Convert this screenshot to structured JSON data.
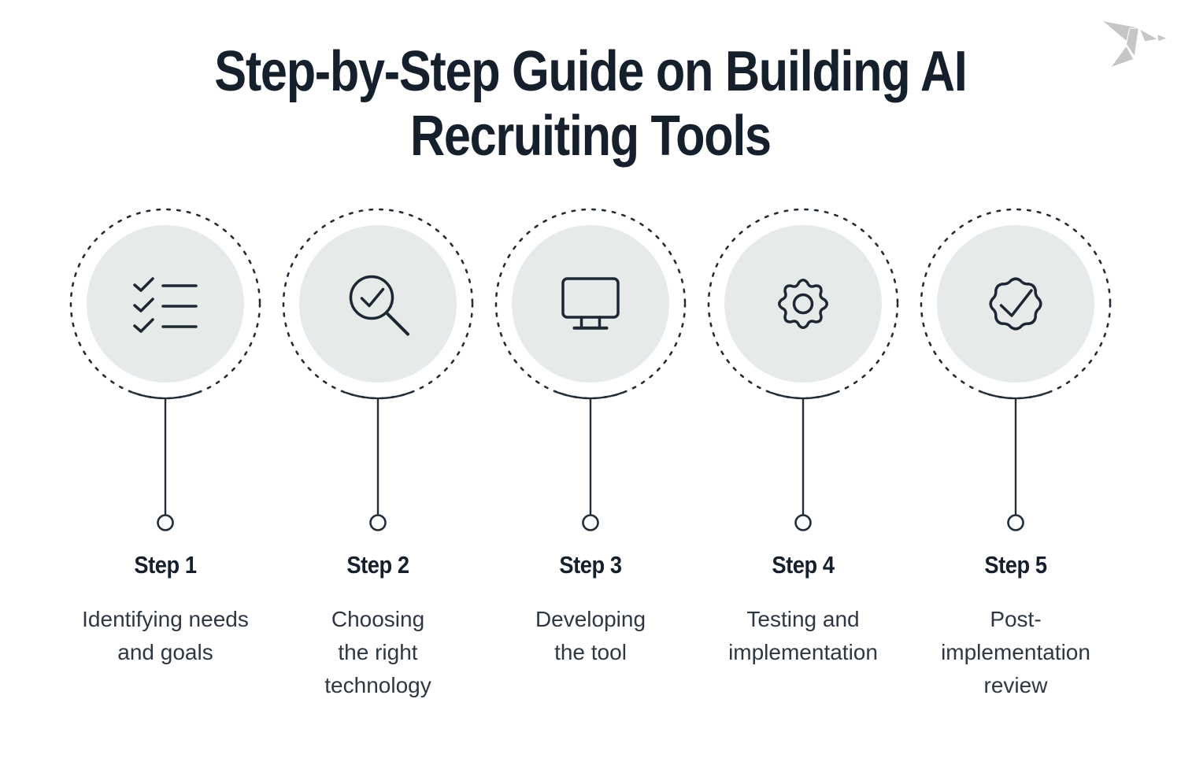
{
  "page": {
    "title": "Step-by-Step Guide on Building AI\nRecruiting Tools"
  },
  "logo": {
    "icon": "origami-bird-logo"
  },
  "colors": {
    "background": "#ffffff",
    "ink": "#1d2733",
    "title_text": "#16202d",
    "body_text": "#2e3742",
    "circle_fill": "#e6ebe9",
    "logo_gray": "#c6c6c6"
  },
  "steps": [
    {
      "label": "Step 1",
      "description": "Identifying needs\nand goals",
      "icon": "checklist-icon"
    },
    {
      "label": "Step 2",
      "description": "Choosing\nthe right\ntechnology",
      "icon": "search-check-icon"
    },
    {
      "label": "Step 3",
      "description": "Developing\nthe tool",
      "icon": "monitor-icon"
    },
    {
      "label": "Step 4",
      "description": "Testing and\nimplementation",
      "icon": "gear-icon"
    },
    {
      "label": "Step 5",
      "description": "Post-\nimplementation\nreview",
      "icon": "badge-check-icon"
    }
  ]
}
